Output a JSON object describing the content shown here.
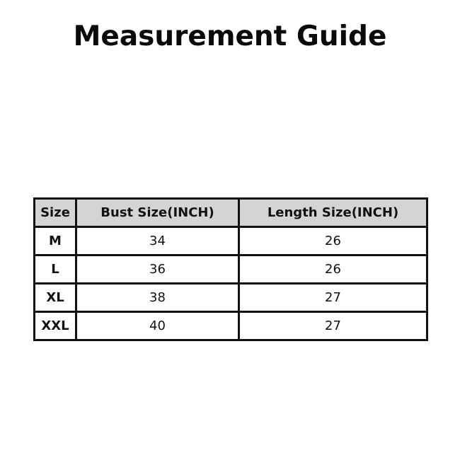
{
  "title": "Measurement Guide",
  "table": {
    "headers": [
      "Size",
      "Bust Size(INCH)",
      "Length Size(INCH)"
    ],
    "rows": [
      [
        "M",
        "34",
        "26"
      ],
      [
        "L",
        "36",
        "26"
      ],
      [
        "XL",
        "38",
        "27"
      ],
      [
        "XXL",
        "40",
        "27"
      ]
    ]
  },
  "colors": {
    "header_bg": "#d4d4d4",
    "border": "#111111"
  }
}
